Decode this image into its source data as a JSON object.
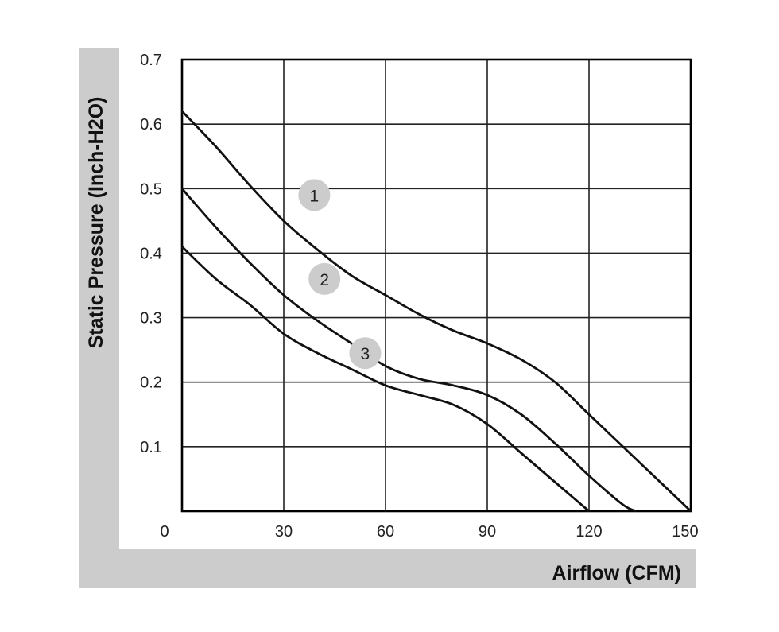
{
  "chart_data": {
    "type": "line",
    "xlabel": "Airflow (CFM)",
    "ylabel": "Static Pressure (Inch-H2O)",
    "xlim": [
      0,
      150
    ],
    "ylim": [
      0,
      0.7
    ],
    "x_ticks": [
      "0",
      "30",
      "60",
      "90",
      "120",
      "150"
    ],
    "y_ticks": [
      "0.1",
      "0.2",
      "0.3",
      "0.4",
      "0.5",
      "0.6",
      "0.7"
    ],
    "grid": true,
    "series": [
      {
        "name": "1",
        "x": [
          0,
          10,
          20,
          30,
          40,
          50,
          60,
          70,
          80,
          90,
          100,
          110,
          120,
          130,
          140,
          150
        ],
        "y": [
          0.62,
          0.565,
          0.505,
          0.45,
          0.405,
          0.365,
          0.335,
          0.305,
          0.28,
          0.26,
          0.235,
          0.2,
          0.15,
          0.1,
          0.05,
          0.0
        ]
      },
      {
        "name": "2",
        "x": [
          0,
          10,
          20,
          30,
          40,
          50,
          60,
          70,
          80,
          90,
          100,
          110,
          120,
          130,
          134
        ],
        "y": [
          0.5,
          0.44,
          0.385,
          0.335,
          0.295,
          0.26,
          0.225,
          0.205,
          0.195,
          0.18,
          0.15,
          0.105,
          0.055,
          0.01,
          0.0
        ]
      },
      {
        "name": "3",
        "x": [
          0,
          10,
          20,
          30,
          40,
          50,
          60,
          70,
          80,
          90,
          100,
          110,
          120
        ],
        "y": [
          0.41,
          0.36,
          0.32,
          0.275,
          0.245,
          0.22,
          0.195,
          0.18,
          0.165,
          0.135,
          0.09,
          0.045,
          0.0
        ]
      }
    ],
    "markers": [
      {
        "label": "1",
        "x": 39,
        "y": 0.49
      },
      {
        "label": "2",
        "x": 42,
        "y": 0.36
      },
      {
        "label": "3",
        "x": 54,
        "y": 0.245
      }
    ]
  }
}
